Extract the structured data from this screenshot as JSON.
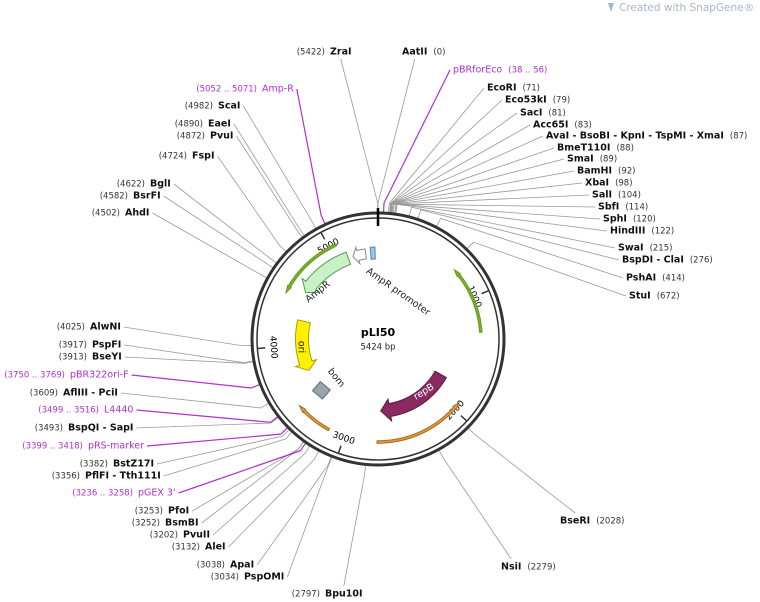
{
  "watermark": "Created with SnapGene®",
  "plasmid": {
    "name": "pLI50",
    "size": "5424 bp"
  },
  "ruler": [
    1000,
    2000,
    3000,
    4000,
    5000
  ],
  "features": [
    "AmpR promoter",
    "AmpR",
    "ori",
    "bom",
    "repB"
  ],
  "sites": [
    {
      "name": "ZraI",
      "position": "(5422)"
    },
    {
      "name": "AatII",
      "position": "(0)"
    },
    {
      "name": "EcoRI",
      "position": "(71)"
    },
    {
      "name": "Eco53kI",
      "position": "(79)"
    },
    {
      "name": "SacI",
      "position": "(81)"
    },
    {
      "name": "Acc65I",
      "position": "(83)"
    },
    {
      "name": "AvaI - BsoBI - KpnI - TspMI - XmaI",
      "position": "(87)"
    },
    {
      "name": "BmeT110I",
      "position": "(88)"
    },
    {
      "name": "SmaI",
      "position": "(89)"
    },
    {
      "name": "BamHI",
      "position": "(92)"
    },
    {
      "name": "XbaI",
      "position": "(98)"
    },
    {
      "name": "SalI",
      "position": "(104)"
    },
    {
      "name": "SbfI",
      "position": "(114)"
    },
    {
      "name": "SphI",
      "position": "(120)"
    },
    {
      "name": "HindIII",
      "position": "(122)"
    },
    {
      "name": "SwaI",
      "position": "(215)"
    },
    {
      "name": "BspDI - ClaI",
      "position": "(276)"
    },
    {
      "name": "PshAI",
      "position": "(414)"
    },
    {
      "name": "StuI",
      "position": "(672)"
    },
    {
      "name": "BseRI",
      "position": "(2028)"
    },
    {
      "name": "NsiI",
      "position": "(2279)"
    },
    {
      "name": "Bpu10I",
      "position": "(2797)"
    },
    {
      "name": "PspOMI",
      "position": "(3034)"
    },
    {
      "name": "ApaI",
      "position": "(3038)"
    },
    {
      "name": "AleI",
      "position": "(3132)"
    },
    {
      "name": "PvuII",
      "position": "(3202)"
    },
    {
      "name": "BsmBI",
      "position": "(3252)"
    },
    {
      "name": "PfoI",
      "position": "(3253)"
    },
    {
      "name": "PflFI - Tth111I",
      "position": "(3356)"
    },
    {
      "name": "BstZ17I",
      "position": "(3382)"
    },
    {
      "name": "BspQI - SapI",
      "position": "(3493)"
    },
    {
      "name": "AflIII - PciI",
      "position": "(3609)"
    },
    {
      "name": "BseYI",
      "position": "(3913)"
    },
    {
      "name": "PspFI",
      "position": "(3917)"
    },
    {
      "name": "AlwNI",
      "position": "(4025)"
    },
    {
      "name": "AhdI",
      "position": "(4502)"
    },
    {
      "name": "BsrFI",
      "position": "(4582)"
    },
    {
      "name": "BglI",
      "position": "(4622)"
    },
    {
      "name": "FspI",
      "position": "(4724)"
    },
    {
      "name": "PvuI",
      "position": "(4872)"
    },
    {
      "name": "EaeI",
      "position": "(4890)"
    },
    {
      "name": "ScaI",
      "position": "(4982)"
    }
  ],
  "primers": [
    {
      "name": "pBRforEco",
      "position": "(38 .. 56)"
    },
    {
      "name": "Amp-R",
      "position": "(5052 .. 5071)"
    },
    {
      "name": "pBR322ori-F",
      "position": "(3750 .. 3769)"
    },
    {
      "name": "L4440",
      "position": "(3499 .. 3516)"
    },
    {
      "name": "pRS-marker",
      "position": "(3399 .. 3418)"
    },
    {
      "name": "pGEX 3'",
      "position": "(3236 .. 3258)"
    }
  ]
}
